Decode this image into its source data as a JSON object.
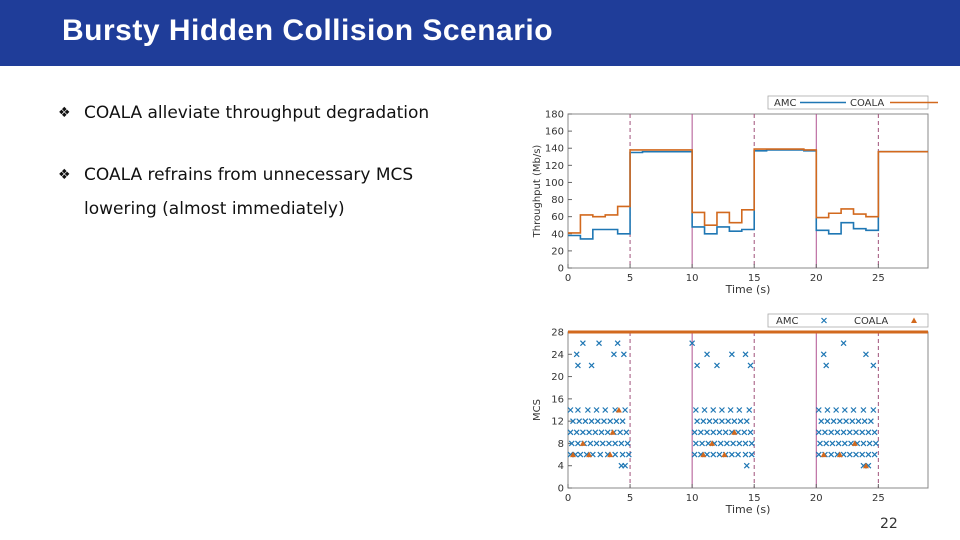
{
  "slide": {
    "title": "Bursty Hidden Collision Scenario",
    "page_number": "22",
    "header_color": "#1f3d99"
  },
  "bullets": [
    {
      "icon": "diamond-bullet-icon",
      "lines": [
        "COALA alleviate throughput degradation"
      ]
    },
    {
      "icon": "diamond-bullet-icon",
      "lines": [
        "COALA refrains from unnecessary MCS",
        "lowering (almost immediately)"
      ]
    }
  ],
  "chart_data": [
    {
      "type": "line",
      "xlabel": "Time (s)",
      "ylabel": "Throughput (Mb/s)",
      "xlim": [
        0,
        29
      ],
      "ylim": [
        0,
        180
      ],
      "xticks": [
        0,
        5,
        10,
        15,
        20,
        25
      ],
      "yticks": [
        0,
        20,
        40,
        60,
        80,
        100,
        120,
        140,
        160,
        180
      ],
      "grid": false,
      "legend_position": "top-right",
      "vlines_dashed": [
        5,
        15,
        25
      ],
      "vlines_solid": [
        10,
        20
      ],
      "series": [
        {
          "name": "AMC",
          "color": "#1f77b4",
          "x": [
            0,
            1,
            2,
            3,
            4,
            5,
            6,
            7,
            8,
            9,
            10,
            11,
            12,
            13,
            14,
            15,
            16,
            17,
            18,
            19,
            20,
            21,
            22,
            23,
            24,
            25,
            26,
            27,
            28,
            29
          ],
          "y": [
            38,
            34,
            45,
            45,
            40,
            135,
            136,
            136,
            136,
            136,
            48,
            40,
            48,
            43,
            45,
            137,
            138,
            138,
            138,
            137,
            44,
            40,
            53,
            46,
            44,
            136,
            136,
            136,
            136,
            136
          ]
        },
        {
          "name": "COALA",
          "color": "#d2691e",
          "x": [
            0,
            1,
            2,
            3,
            4,
            5,
            6,
            7,
            8,
            9,
            10,
            11,
            12,
            13,
            14,
            15,
            16,
            17,
            18,
            19,
            20,
            21,
            22,
            23,
            24,
            25,
            26,
            27,
            28,
            29
          ],
          "y": [
            41,
            62,
            60,
            62,
            72,
            138,
            138,
            138,
            138,
            138,
            65,
            50,
            65,
            53,
            68,
            139,
            139,
            139,
            139,
            138,
            59,
            64,
            69,
            63,
            60,
            136,
            136,
            136,
            136,
            136
          ]
        }
      ]
    },
    {
      "type": "scatter",
      "xlabel": "Time (s)",
      "ylabel": "MCS",
      "xlim": [
        0,
        29
      ],
      "ylim": [
        0,
        28
      ],
      "xticks": [
        0,
        5,
        10,
        15,
        20,
        25
      ],
      "yticks": [
        0,
        4,
        8,
        12,
        16,
        20,
        24,
        28
      ],
      "grid": false,
      "legend_position": "top-right",
      "vlines_dashed": [
        5,
        15,
        25
      ],
      "vlines_solid": [
        10,
        20
      ],
      "series": [
        {
          "name": "AMC",
          "color": "#1f77b4",
          "marker": "x",
          "points": [
            [
              0.2,
              6
            ],
            [
              0.6,
              6
            ],
            [
              1.0,
              6
            ],
            [
              1.5,
              6
            ],
            [
              2.0,
              6
            ],
            [
              2.6,
              6
            ],
            [
              3.2,
              6
            ],
            [
              3.8,
              6
            ],
            [
              4.4,
              6
            ],
            [
              4.9,
              6
            ],
            [
              0.3,
              8
            ],
            [
              0.8,
              8
            ],
            [
              1.3,
              8
            ],
            [
              1.8,
              8
            ],
            [
              2.3,
              8
            ],
            [
              2.8,
              8
            ],
            [
              3.3,
              8
            ],
            [
              3.8,
              8
            ],
            [
              4.3,
              8
            ],
            [
              4.8,
              8
            ],
            [
              0.2,
              10
            ],
            [
              0.7,
              10
            ],
            [
              1.2,
              10
            ],
            [
              1.7,
              10
            ],
            [
              2.2,
              10
            ],
            [
              2.7,
              10
            ],
            [
              3.2,
              10
            ],
            [
              3.7,
              10
            ],
            [
              4.2,
              10
            ],
            [
              4.7,
              10
            ],
            [
              0.4,
              12
            ],
            [
              0.9,
              12
            ],
            [
              1.4,
              12
            ],
            [
              1.9,
              12
            ],
            [
              2.4,
              12
            ],
            [
              2.9,
              12
            ],
            [
              3.4,
              12
            ],
            [
              3.9,
              12
            ],
            [
              4.4,
              12
            ],
            [
              0.2,
              14
            ],
            [
              0.8,
              14
            ],
            [
              1.6,
              14
            ],
            [
              2.3,
              14
            ],
            [
              3.0,
              14
            ],
            [
              3.8,
              14
            ],
            [
              4.6,
              14
            ],
            [
              0.8,
              22
            ],
            [
              1.9,
              22
            ],
            [
              3.7,
              24
            ],
            [
              4.5,
              24
            ],
            [
              0.7,
              24
            ],
            [
              1.2,
              26
            ],
            [
              2.5,
              26
            ],
            [
              4.0,
              26
            ],
            [
              4.3,
              4
            ],
            [
              4.6,
              4
            ],
            [
              10.2,
              6
            ],
            [
              10.7,
              6
            ],
            [
              11.2,
              6
            ],
            [
              11.7,
              6
            ],
            [
              12.2,
              6
            ],
            [
              12.7,
              6
            ],
            [
              13.2,
              6
            ],
            [
              13.7,
              6
            ],
            [
              14.3,
              6
            ],
            [
              14.8,
              6
            ],
            [
              10.3,
              8
            ],
            [
              10.8,
              8
            ],
            [
              11.3,
              8
            ],
            [
              11.8,
              8
            ],
            [
              12.3,
              8
            ],
            [
              12.8,
              8
            ],
            [
              13.3,
              8
            ],
            [
              13.8,
              8
            ],
            [
              14.3,
              8
            ],
            [
              14.8,
              8
            ],
            [
              10.2,
              10
            ],
            [
              10.7,
              10
            ],
            [
              11.2,
              10
            ],
            [
              11.7,
              10
            ],
            [
              12.2,
              10
            ],
            [
              12.7,
              10
            ],
            [
              13.2,
              10
            ],
            [
              13.7,
              10
            ],
            [
              14.2,
              10
            ],
            [
              14.7,
              10
            ],
            [
              10.4,
              12
            ],
            [
              10.9,
              12
            ],
            [
              11.4,
              12
            ],
            [
              11.9,
              12
            ],
            [
              12.4,
              12
            ],
            [
              12.9,
              12
            ],
            [
              13.4,
              12
            ],
            [
              13.9,
              12
            ],
            [
              14.4,
              12
            ],
            [
              10.3,
              14
            ],
            [
              11.0,
              14
            ],
            [
              11.7,
              14
            ],
            [
              12.4,
              14
            ],
            [
              13.1,
              14
            ],
            [
              13.8,
              14
            ],
            [
              14.6,
              14
            ],
            [
              10.0,
              26
            ],
            [
              11.2,
              24
            ],
            [
              13.2,
              24
            ],
            [
              14.3,
              24
            ],
            [
              10.4,
              22
            ],
            [
              12.0,
              22
            ],
            [
              14.7,
              22
            ],
            [
              14.4,
              4
            ],
            [
              20.2,
              6
            ],
            [
              20.7,
              6
            ],
            [
              21.2,
              6
            ],
            [
              21.7,
              6
            ],
            [
              22.2,
              6
            ],
            [
              22.7,
              6
            ],
            [
              23.2,
              6
            ],
            [
              23.7,
              6
            ],
            [
              24.2,
              6
            ],
            [
              24.7,
              6
            ],
            [
              20.3,
              8
            ],
            [
              20.8,
              8
            ],
            [
              21.3,
              8
            ],
            [
              21.8,
              8
            ],
            [
              22.3,
              8
            ],
            [
              22.8,
              8
            ],
            [
              23.3,
              8
            ],
            [
              23.8,
              8
            ],
            [
              24.3,
              8
            ],
            [
              24.8,
              8
            ],
            [
              20.2,
              10
            ],
            [
              20.7,
              10
            ],
            [
              21.2,
              10
            ],
            [
              21.7,
              10
            ],
            [
              22.2,
              10
            ],
            [
              22.7,
              10
            ],
            [
              23.2,
              10
            ],
            [
              23.7,
              10
            ],
            [
              24.2,
              10
            ],
            [
              24.7,
              10
            ],
            [
              20.4,
              12
            ],
            [
              20.9,
              12
            ],
            [
              21.4,
              12
            ],
            [
              21.9,
              12
            ],
            [
              22.4,
              12
            ],
            [
              22.9,
              12
            ],
            [
              23.4,
              12
            ],
            [
              23.9,
              12
            ],
            [
              24.4,
              12
            ],
            [
              20.2,
              14
            ],
            [
              20.9,
              14
            ],
            [
              21.6,
              14
            ],
            [
              22.3,
              14
            ],
            [
              23.0,
              14
            ],
            [
              23.8,
              14
            ],
            [
              24.6,
              14
            ],
            [
              20.6,
              24
            ],
            [
              22.2,
              26
            ],
            [
              24.0,
              24
            ],
            [
              20.8,
              22
            ],
            [
              24.6,
              22
            ],
            [
              23.8,
              4
            ],
            [
              24.2,
              4
            ]
          ]
        },
        {
          "name": "COALA",
          "color": "#d2691e",
          "marker": "triangle",
          "points": [
            [
              0.4,
              6
            ],
            [
              1.7,
              6
            ],
            [
              3.4,
              6
            ],
            [
              1.2,
              8
            ],
            [
              3.6,
              10
            ],
            [
              4.1,
              14
            ],
            [
              10.9,
              6
            ],
            [
              12.6,
              6
            ],
            [
              13.4,
              10
            ],
            [
              11.6,
              8
            ],
            [
              20.6,
              6
            ],
            [
              21.9,
              6
            ],
            [
              23.1,
              8
            ],
            [
              24.0,
              4
            ]
          ]
        }
      ]
    }
  ]
}
